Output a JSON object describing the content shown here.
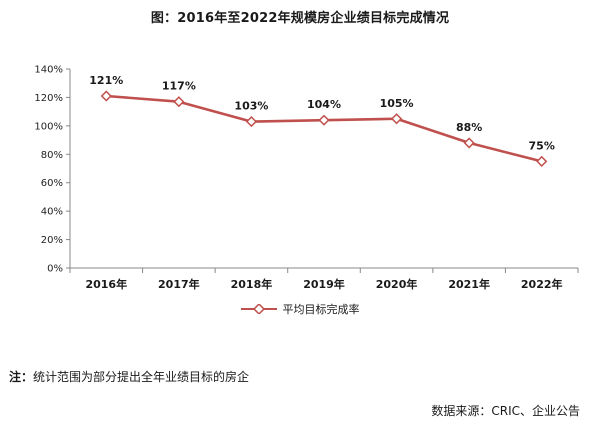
{
  "chart_data": {
    "type": "line",
    "title": "图：2016年至2022年规模房企业绩目标完成情况",
    "categories": [
      "2016年",
      "2017年",
      "2018年",
      "2019年",
      "2020年",
      "2021年",
      "2022年"
    ],
    "series": [
      {
        "name": "平均目标完成率",
        "values": [
          121,
          117,
          103,
          104,
          105,
          88,
          75
        ],
        "labels": [
          "121%",
          "117%",
          "103%",
          "104%",
          "105%",
          "88%",
          "75%"
        ],
        "color": "#c0504d"
      }
    ],
    "ylim": [
      0,
      140
    ],
    "yticks": [
      "0%",
      "20%",
      "40%",
      "60%",
      "80%",
      "100%",
      "120%",
      "140%"
    ],
    "xlabel": "",
    "ylabel": "",
    "grid": false,
    "legend_position": "bottom"
  },
  "note": {
    "label": "注：",
    "text": "统计范围为部分提出全年业绩目标的房企"
  },
  "source": "数据来源：CRIC、企业公告"
}
